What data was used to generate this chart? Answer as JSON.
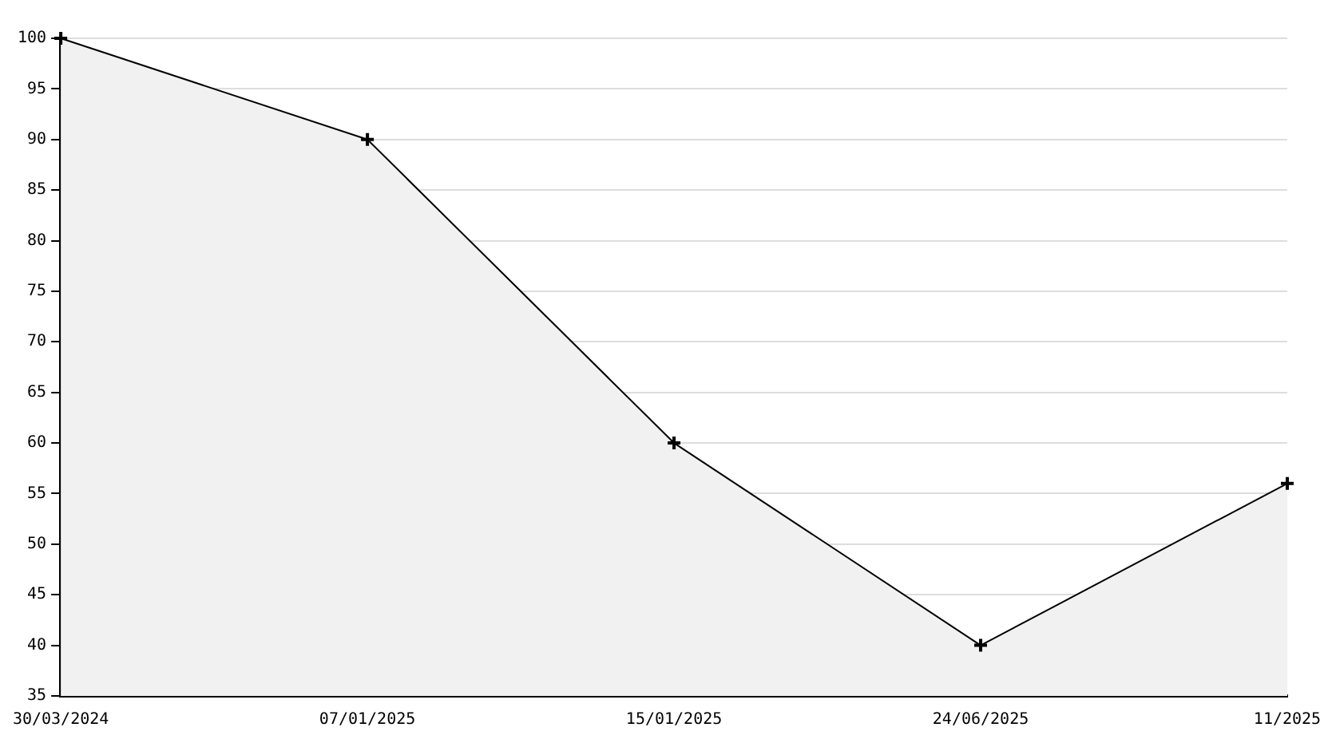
{
  "chart_data": {
    "type": "area",
    "categories": [
      "30/03/2024",
      "07/01/2025",
      "15/01/2025",
      "24/06/2025",
      "11/2025"
    ],
    "series": [
      {
        "color": "#000000",
        "values": [
          100,
          90,
          60,
          40,
          56
        ]
      }
    ],
    "ylim": [
      35,
      100
    ],
    "yticks": [
      35,
      40,
      45,
      50,
      55,
      60,
      65,
      70,
      75,
      80,
      85,
      90,
      95,
      100
    ],
    "grid": "y",
    "legend": false,
    "marker": "cross",
    "line_style": "solid"
  }
}
